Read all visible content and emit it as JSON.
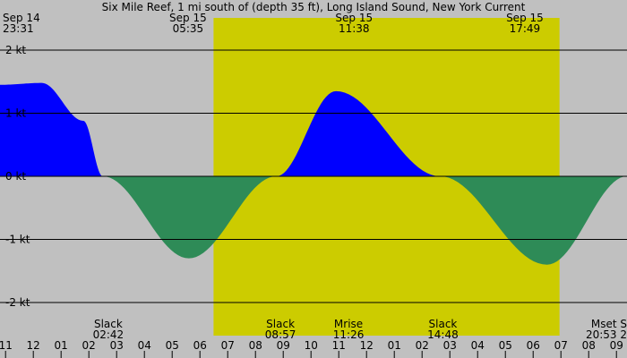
{
  "chart_data": {
    "type": "area",
    "title": "Six Mile Reef, 1 mi south of (depth 35 ft), Long Island Sound, New York Current",
    "unit": "kt",
    "ylim": [
      -2.8,
      2.8
    ],
    "y_ticks": [
      {
        "value": 2,
        "label": "2 kt"
      },
      {
        "value": 1,
        "label": "1 kt"
      },
      {
        "value": 0,
        "label": "0 kt"
      },
      {
        "value": -1,
        "label": "-1 kt"
      },
      {
        "value": -2,
        "label": "-2 kt"
      }
    ],
    "grid": true,
    "x_range_hours": [
      0,
      22.58
    ],
    "daylight_hours": [
      7.69,
      20.15
    ],
    "series": [
      {
        "x": [
          0,
          1.5,
          3,
          3.7,
          6.8,
          9.95,
          12.1,
          15.85,
          19.7,
          22.58
        ],
        "y": [
          1.45,
          1.48,
          0.88,
          0,
          -1.3,
          0,
          1.35,
          0,
          -1.4,
          0
        ],
        "positive_color": "#0000ff",
        "negative_color": "#2e8b57"
      }
    ],
    "top_labels": [
      {
        "line1": "Sep 14",
        "line2": "23:31",
        "hour": 0.25,
        "anchor": "start"
      },
      {
        "line1": "Sep 15",
        "line2": "05:35",
        "hour": 6.77,
        "anchor": "middle"
      },
      {
        "line1": "Sep 15",
        "line2": "11:38",
        "hour": 12.75,
        "anchor": "middle"
      },
      {
        "line1": "Sep 15",
        "line2": "17:49",
        "hour": 18.9,
        "anchor": "middle"
      }
    ],
    "events": [
      {
        "label": "Slack",
        "time": "02:42",
        "hour": 3.9
      },
      {
        "label": "Slack",
        "time": "08:57",
        "hour": 10.1
      },
      {
        "label": "Mrise",
        "time": "11:26",
        "hour": 12.55
      },
      {
        "label": "Slack",
        "time": "14:48",
        "hour": 15.95
      },
      {
        "label": "Mset S",
        "time": "20:53 2",
        "hour": 21.85
      }
    ],
    "x_tick_labels": [
      "11",
      "12",
      "01",
      "02",
      "03",
      "04",
      "05",
      "06",
      "07",
      "08",
      "09",
      "10",
      "11",
      "12",
      "01",
      "02",
      "03",
      "04",
      "05",
      "06",
      "07",
      "08",
      "09"
    ],
    "x_tick_first_hour": 0.2
  },
  "colors": {
    "background": "#c0c0c0",
    "daylight": "#cccc00",
    "flood": "#0000ff",
    "ebb": "#2e8b57"
  }
}
